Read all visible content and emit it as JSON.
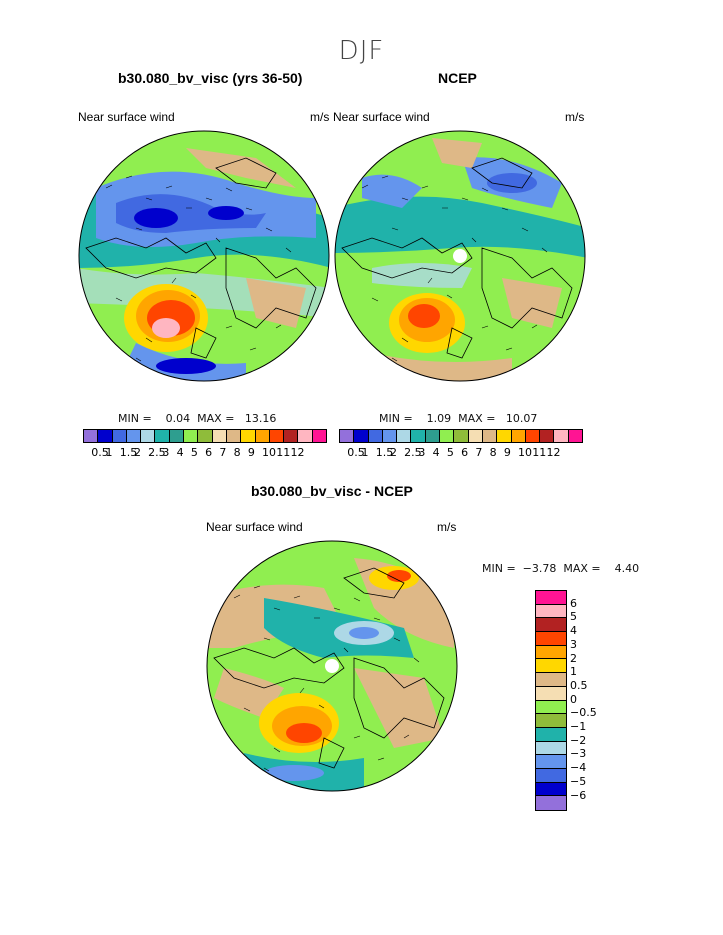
{
  "season": "DJF",
  "panels": [
    {
      "title": "b30.080_bv_visc (yrs 36-50)",
      "left_label": "Near surface wind",
      "units": "m/s",
      "min_max": "MIN =    0.04  MAX =   13.16"
    },
    {
      "title": "NCEP",
      "left_label": "Near surface wind",
      "units": "m/s",
      "min_max": "MIN =    1.09  MAX =   10.07"
    },
    {
      "title": "b30.080_bv_visc - NCEP",
      "left_label": "Near surface wind",
      "units": "m/s",
      "min_max": "MIN =  −3.78  MAX =    4.40"
    }
  ],
  "abs_colorbar": {
    "colors": [
      "#9370db",
      "#0000cd",
      "#4169e1",
      "#6495ed",
      "#add8e6",
      "#20b2aa",
      "#2e9e8f",
      "#90ee50",
      "#8fbc3a",
      "#f5deb3",
      "#deb887",
      "#ffd700",
      "#ffa500",
      "#ff4500",
      "#b22222",
      "#ffb6c1",
      "#ff1493"
    ],
    "labels": [
      "0.5",
      "1",
      "1.5",
      "2",
      "2.5",
      "3",
      "4",
      "5",
      "6",
      "7",
      "8",
      "9",
      "10",
      "11",
      "12"
    ]
  },
  "diff_colorbar": {
    "colors": [
      "#ff1493",
      "#ffb6c1",
      "#b22222",
      "#ff4500",
      "#ffa500",
      "#ffd700",
      "#deb887",
      "#f5deb3",
      "#90ee50",
      "#8fbc3a",
      "#20b2aa",
      "#add8e6",
      "#6495ed",
      "#4169e1",
      "#0000cd",
      "#9370db"
    ],
    "labels": [
      "6",
      "5",
      "4",
      "3",
      "2",
      "1",
      "0.5",
      "0",
      "−0.5",
      "−1",
      "−2",
      "−3",
      "−4",
      "−5",
      "−6"
    ]
  }
}
